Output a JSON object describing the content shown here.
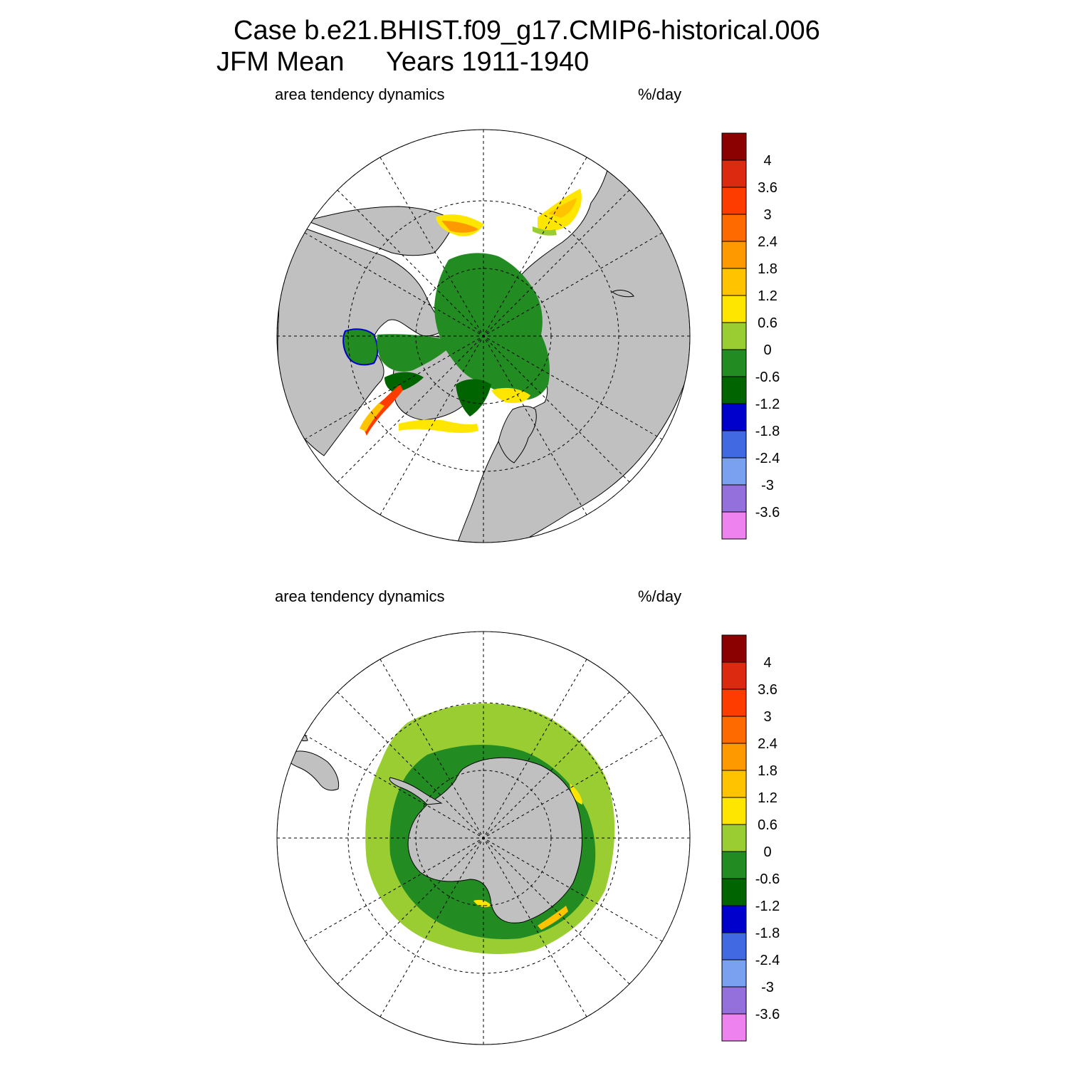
{
  "title": {
    "line1": "Case b.e21.BHIST.f09_g17.CMIP6-historical.006",
    "line2_season": "JFM Mean",
    "line2_years": "Years 1911-1940"
  },
  "panels": [
    {
      "id": "north",
      "hemisphere": "Northern Hemisphere polar stereographic",
      "left_label": "area tendency dynamics",
      "right_label": "%/day"
    },
    {
      "id": "south",
      "hemisphere": "Southern Hemisphere polar stereographic",
      "left_label": "area tendency dynamics",
      "right_label": "%/day"
    }
  ],
  "colorbar": {
    "unit": "%/day",
    "tick_labels": [
      "4",
      "3.6",
      "3",
      "2.4",
      "1.8",
      "1.2",
      "0.6",
      "0",
      "-0.6",
      "-1.2",
      "-1.8",
      "-2.4",
      "-3",
      "-3.6"
    ],
    "colors": [
      "#8b0000",
      "#dc2a10",
      "#ff3c00",
      "#ff6a00",
      "#ff9900",
      "#ffc300",
      "#ffe600",
      "#9acd32",
      "#228b22",
      "#006400",
      "#0000cd",
      "#4169e1",
      "#7aa0f0",
      "#9370db",
      "#ee82ee"
    ]
  },
  "colors": {
    "land": "#c0c0c0",
    "ocean_no_data": "#ffffff",
    "grid": "#000000"
  }
}
